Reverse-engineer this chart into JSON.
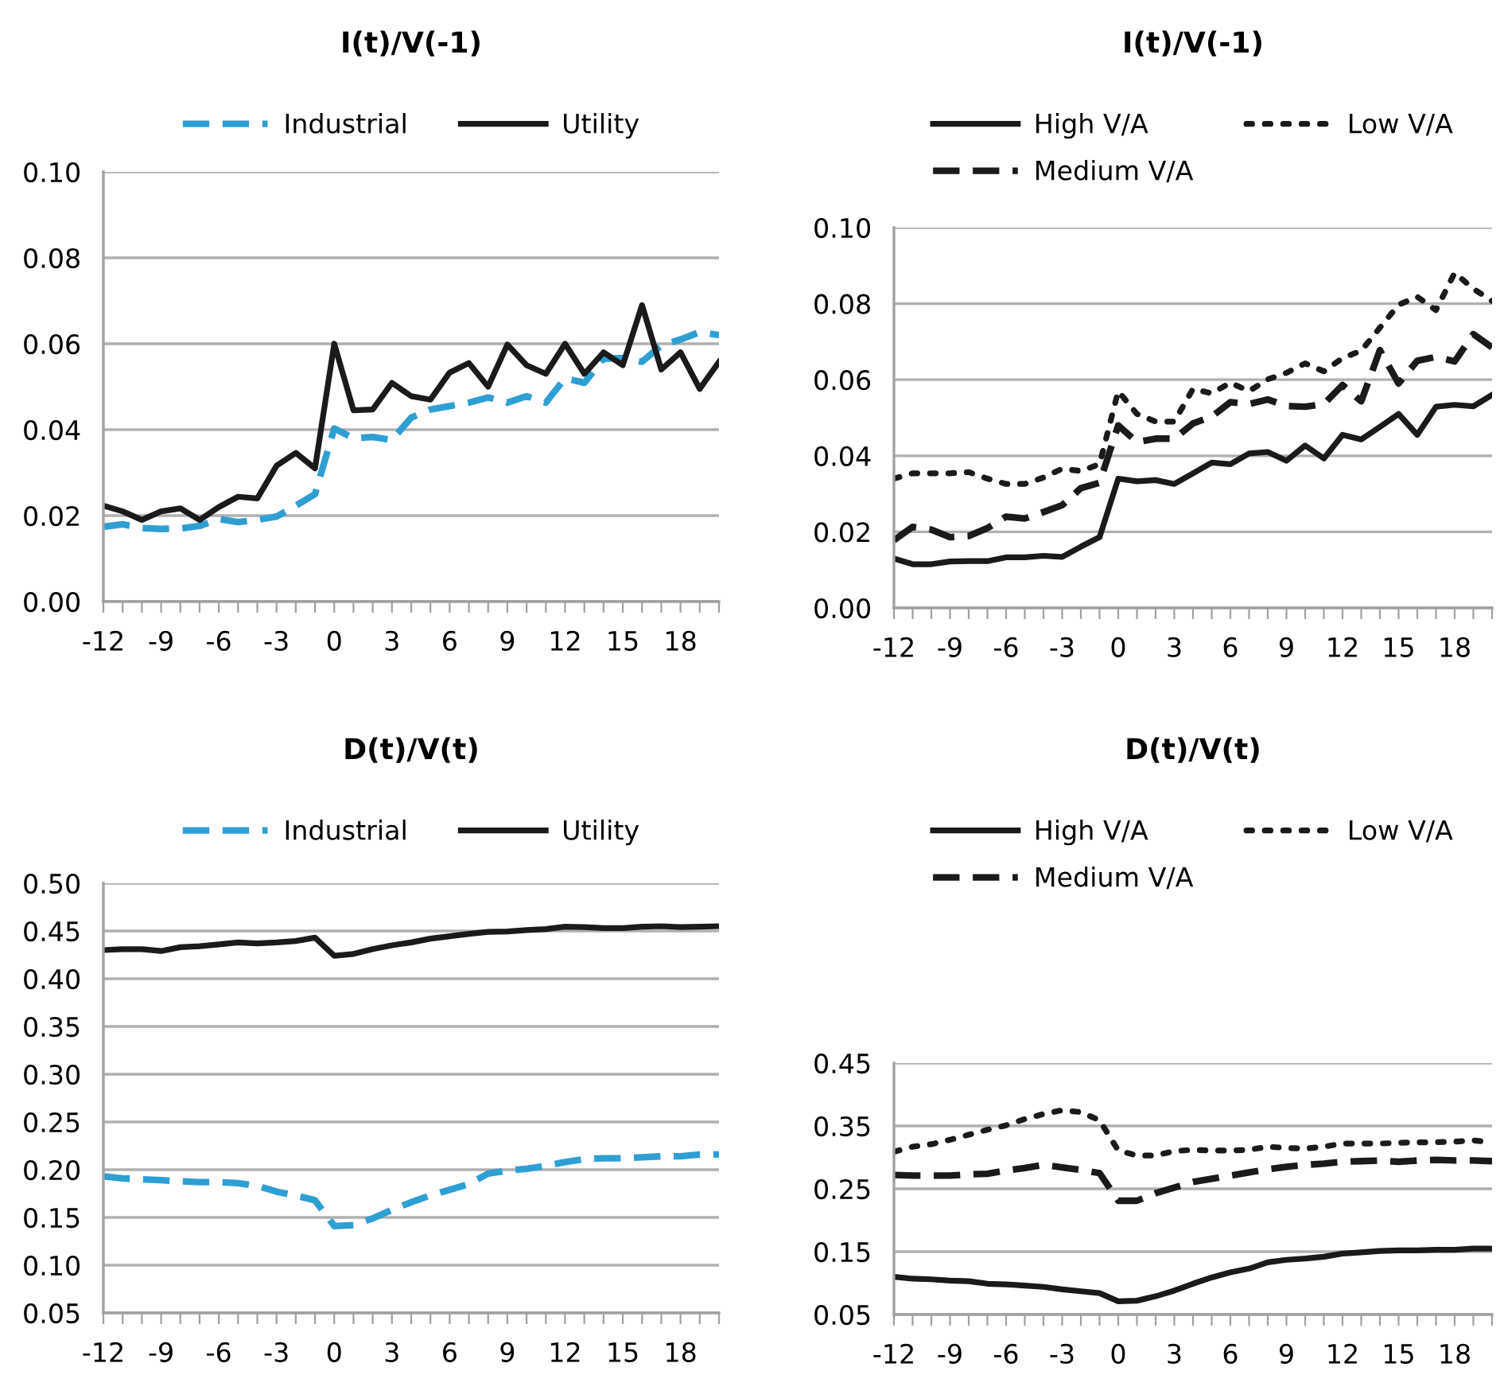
{
  "chart_data": [
    {
      "type": "line",
      "title": "I(t)/V(-1)",
      "categories": [
        "-12",
        null,
        null,
        "-9",
        null,
        null,
        "-6",
        null,
        null,
        "-3",
        null,
        null,
        "0",
        null,
        null,
        "3",
        null,
        null,
        "6",
        null,
        null,
        "9",
        null,
        null,
        "12",
        null,
        null,
        "15",
        null,
        null,
        "18",
        null,
        null
      ],
      "ylim": [
        0,
        0.1
      ],
      "yticks": [
        {
          "value": 0,
          "label": "0.00"
        },
        {
          "value": 0.02,
          "label": "0.02"
        },
        {
          "value": 0.04,
          "label": "0.04"
        },
        {
          "value": 0.06,
          "label": "0.06"
        },
        {
          "value": 0.08,
          "label": "0.08"
        },
        {
          "value": 0.1,
          "label": "0.10"
        }
      ],
      "grid": "y",
      "legend": "top",
      "series": [
        {
          "name": "Industrial",
          "color": "#2e9fd3",
          "line_style": "dashed",
          "values": [
            0.0174,
            0.018,
            0.0171,
            0.0169,
            0.017,
            0.0176,
            0.0192,
            0.0185,
            0.019,
            0.0198,
            0.0223,
            0.025,
            0.0403,
            0.038,
            0.0383,
            0.0376,
            0.0428,
            0.0447,
            0.0455,
            0.0463,
            0.0475,
            0.0463,
            0.0478,
            0.0463,
            0.052,
            0.0509,
            0.0565,
            0.0567,
            0.0558,
            0.0596,
            0.061,
            0.0627,
            0.062
          ]
        },
        {
          "name": "Utility",
          "color": "#1a1a1a",
          "line_style": "solid",
          "values": [
            0.0223,
            0.021,
            0.019,
            0.021,
            0.0217,
            0.019,
            0.022,
            0.0244,
            0.024,
            0.0316,
            0.0346,
            0.031,
            0.06,
            0.0445,
            0.0447,
            0.0509,
            0.0478,
            0.047,
            0.0533,
            0.0555,
            0.05,
            0.0598,
            0.055,
            0.053,
            0.06,
            0.053,
            0.058,
            0.055,
            0.069,
            0.054,
            0.058,
            0.0495,
            0.0558
          ]
        }
      ]
    },
    {
      "type": "line",
      "title": "I(t)/V(-1)",
      "categories": [
        "-12",
        null,
        null,
        "-9",
        null,
        null,
        "-6",
        null,
        null,
        "-3",
        null,
        null,
        "0",
        null,
        null,
        "3",
        null,
        null,
        "6",
        null,
        null,
        "9",
        null,
        null,
        "12",
        null,
        null,
        "15",
        null,
        null,
        "18",
        null,
        null
      ],
      "ylim": [
        0,
        0.1
      ],
      "yticks": [
        {
          "value": 0,
          "label": "0.00"
        },
        {
          "value": 0.02,
          "label": "0.02"
        },
        {
          "value": 0.04,
          "label": "0.04"
        },
        {
          "value": 0.06,
          "label": "0.06"
        },
        {
          "value": 0.08,
          "label": "0.08"
        },
        {
          "value": 0.1,
          "label": "0.10"
        }
      ],
      "grid": "y",
      "legend": "top",
      "series": [
        {
          "name": "High V/A",
          "color": "#1a1a1a",
          "line_style": "solid",
          "values": [
            0.013,
            0.0115,
            0.0115,
            0.0122,
            0.0123,
            0.0123,
            0.0133,
            0.0133,
            0.0137,
            0.0134,
            0.0161,
            0.0186,
            0.034,
            0.0333,
            0.0336,
            0.0326,
            0.0354,
            0.0382,
            0.0378,
            0.0406,
            0.041,
            0.0387,
            0.0427,
            0.0393,
            0.0455,
            0.0443,
            0.0476,
            0.051,
            0.0455,
            0.0529,
            0.0534,
            0.053,
            0.056
          ]
        },
        {
          "name": "Medium V/A",
          "color": "#1a1a1a",
          "line_style": "dashed",
          "values": [
            0.0178,
            0.0213,
            0.0206,
            0.0186,
            0.0189,
            0.021,
            0.024,
            0.0235,
            0.0252,
            0.027,
            0.0315,
            0.0329,
            0.048,
            0.0436,
            0.0445,
            0.0445,
            0.0485,
            0.0503,
            0.0541,
            0.0536,
            0.0548,
            0.0531,
            0.0529,
            0.0536,
            0.0586,
            0.0543,
            0.0678,
            0.059,
            0.065,
            0.066,
            0.0648,
            0.072,
            0.0685
          ]
        },
        {
          "name": "Low V/A",
          "color": "#1a1a1a",
          "line_style": "dotted",
          "values": [
            0.034,
            0.0354,
            0.0354,
            0.0354,
            0.0357,
            0.034,
            0.0326,
            0.0326,
            0.0343,
            0.0366,
            0.036,
            0.0378,
            0.057,
            0.051,
            0.049,
            0.049,
            0.0576,
            0.0564,
            0.0592,
            0.057,
            0.0601,
            0.0618,
            0.0643,
            0.0622,
            0.0657,
            0.0676,
            0.0737,
            0.0797,
            0.0818,
            0.0783,
            0.0881,
            0.0839,
            0.0807
          ]
        }
      ]
    },
    {
      "type": "line",
      "title": "D(t)/V(t)",
      "categories": [
        "-12",
        null,
        null,
        "-9",
        null,
        null,
        "-6",
        null,
        null,
        "-3",
        null,
        null,
        "0",
        null,
        null,
        "3",
        null,
        null,
        "6",
        null,
        null,
        "9",
        null,
        null,
        "12",
        null,
        null,
        "15",
        null,
        null,
        "18",
        null,
        null
      ],
      "ylim": [
        0.05,
        0.5
      ],
      "yticks": [
        {
          "value": 0.05,
          "label": "0.05"
        },
        {
          "value": 0.1,
          "label": "0.10"
        },
        {
          "value": 0.15,
          "label": "0.15"
        },
        {
          "value": 0.2,
          "label": "0.20"
        },
        {
          "value": 0.25,
          "label": "0.25"
        },
        {
          "value": 0.3,
          "label": "0.30"
        },
        {
          "value": 0.35,
          "label": "0.35"
        },
        {
          "value": 0.4,
          "label": "0.40"
        },
        {
          "value": 0.45,
          "label": "0.45"
        },
        {
          "value": 0.5,
          "label": "0.50"
        }
      ],
      "grid": "y",
      "legend": "top",
      "series": [
        {
          "name": "Industrial",
          "color": "#2e9fd3",
          "line_style": "dashed",
          "values": [
            0.193,
            0.191,
            0.19,
            0.189,
            0.188,
            0.187,
            0.187,
            0.186,
            0.183,
            0.177,
            0.173,
            0.168,
            0.141,
            0.142,
            0.149,
            0.158,
            0.166,
            0.173,
            0.179,
            0.185,
            0.196,
            0.199,
            0.201,
            0.204,
            0.208,
            0.211,
            0.212,
            0.212,
            0.213,
            0.214,
            0.214,
            0.216,
            0.216
          ]
        },
        {
          "name": "Utility",
          "color": "#1a1a1a",
          "line_style": "solid",
          "values": [
            0.43,
            0.431,
            0.431,
            0.429,
            0.433,
            0.434,
            0.436,
            0.438,
            0.437,
            0.438,
            0.4395,
            0.443,
            0.424,
            0.426,
            0.431,
            0.435,
            0.438,
            0.442,
            0.4445,
            0.447,
            0.449,
            0.4495,
            0.451,
            0.452,
            0.4545,
            0.454,
            0.453,
            0.453,
            0.4545,
            0.455,
            0.454,
            0.4545,
            0.455
          ]
        }
      ]
    },
    {
      "type": "line",
      "title": "D(t)/V(t)",
      "categories": [
        "-12",
        null,
        null,
        "-9",
        null,
        null,
        "-6",
        null,
        null,
        "-3",
        null,
        null,
        "0",
        null,
        null,
        "3",
        null,
        null,
        "6",
        null,
        null,
        "9",
        null,
        null,
        "12",
        null,
        null,
        "15",
        null,
        null,
        "18",
        null,
        null
      ],
      "ylim": [
        0.05,
        0.45
      ],
      "yticks": [
        0.05,
        0.15,
        0.25,
        0.35,
        0.45
      ],
      "grid": "y",
      "legend": "top",
      "series": [
        {
          "name": "High V/A",
          "color": "#1a1a1a",
          "line_style": "solid",
          "values": [
            0.11,
            0.107,
            0.106,
            0.104,
            0.103,
            0.099,
            0.098,
            0.096,
            0.094,
            0.09,
            0.087,
            0.084,
            0.071,
            0.072,
            0.079,
            0.088,
            0.099,
            0.109,
            0.117,
            0.123,
            0.133,
            0.137,
            0.139,
            0.142,
            0.147,
            0.149,
            0.151,
            0.152,
            0.152,
            0.153,
            0.153,
            0.155,
            0.155
          ]
        },
        {
          "name": "Medium V/A",
          "color": "#1a1a1a",
          "line_style": "dashed",
          "values": [
            0.272,
            0.271,
            0.271,
            0.271,
            0.273,
            0.274,
            0.279,
            0.283,
            0.288,
            0.284,
            0.28,
            0.275,
            0.231,
            0.231,
            0.243,
            0.252,
            0.261,
            0.266,
            0.271,
            0.276,
            0.281,
            0.285,
            0.288,
            0.29,
            0.293,
            0.294,
            0.295,
            0.293,
            0.295,
            0.296,
            0.295,
            0.295,
            0.294
          ]
        },
        {
          "name": "Low V/A",
          "color": "#1a1a1a",
          "line_style": "dotted",
          "values": [
            0.309,
            0.317,
            0.321,
            0.328,
            0.336,
            0.344,
            0.351,
            0.361,
            0.369,
            0.375,
            0.372,
            0.359,
            0.311,
            0.303,
            0.303,
            0.31,
            0.312,
            0.311,
            0.311,
            0.312,
            0.317,
            0.315,
            0.314,
            0.317,
            0.322,
            0.322,
            0.322,
            0.323,
            0.324,
            0.324,
            0.325,
            0.327,
            0.324
          ]
        }
      ]
    }
  ]
}
